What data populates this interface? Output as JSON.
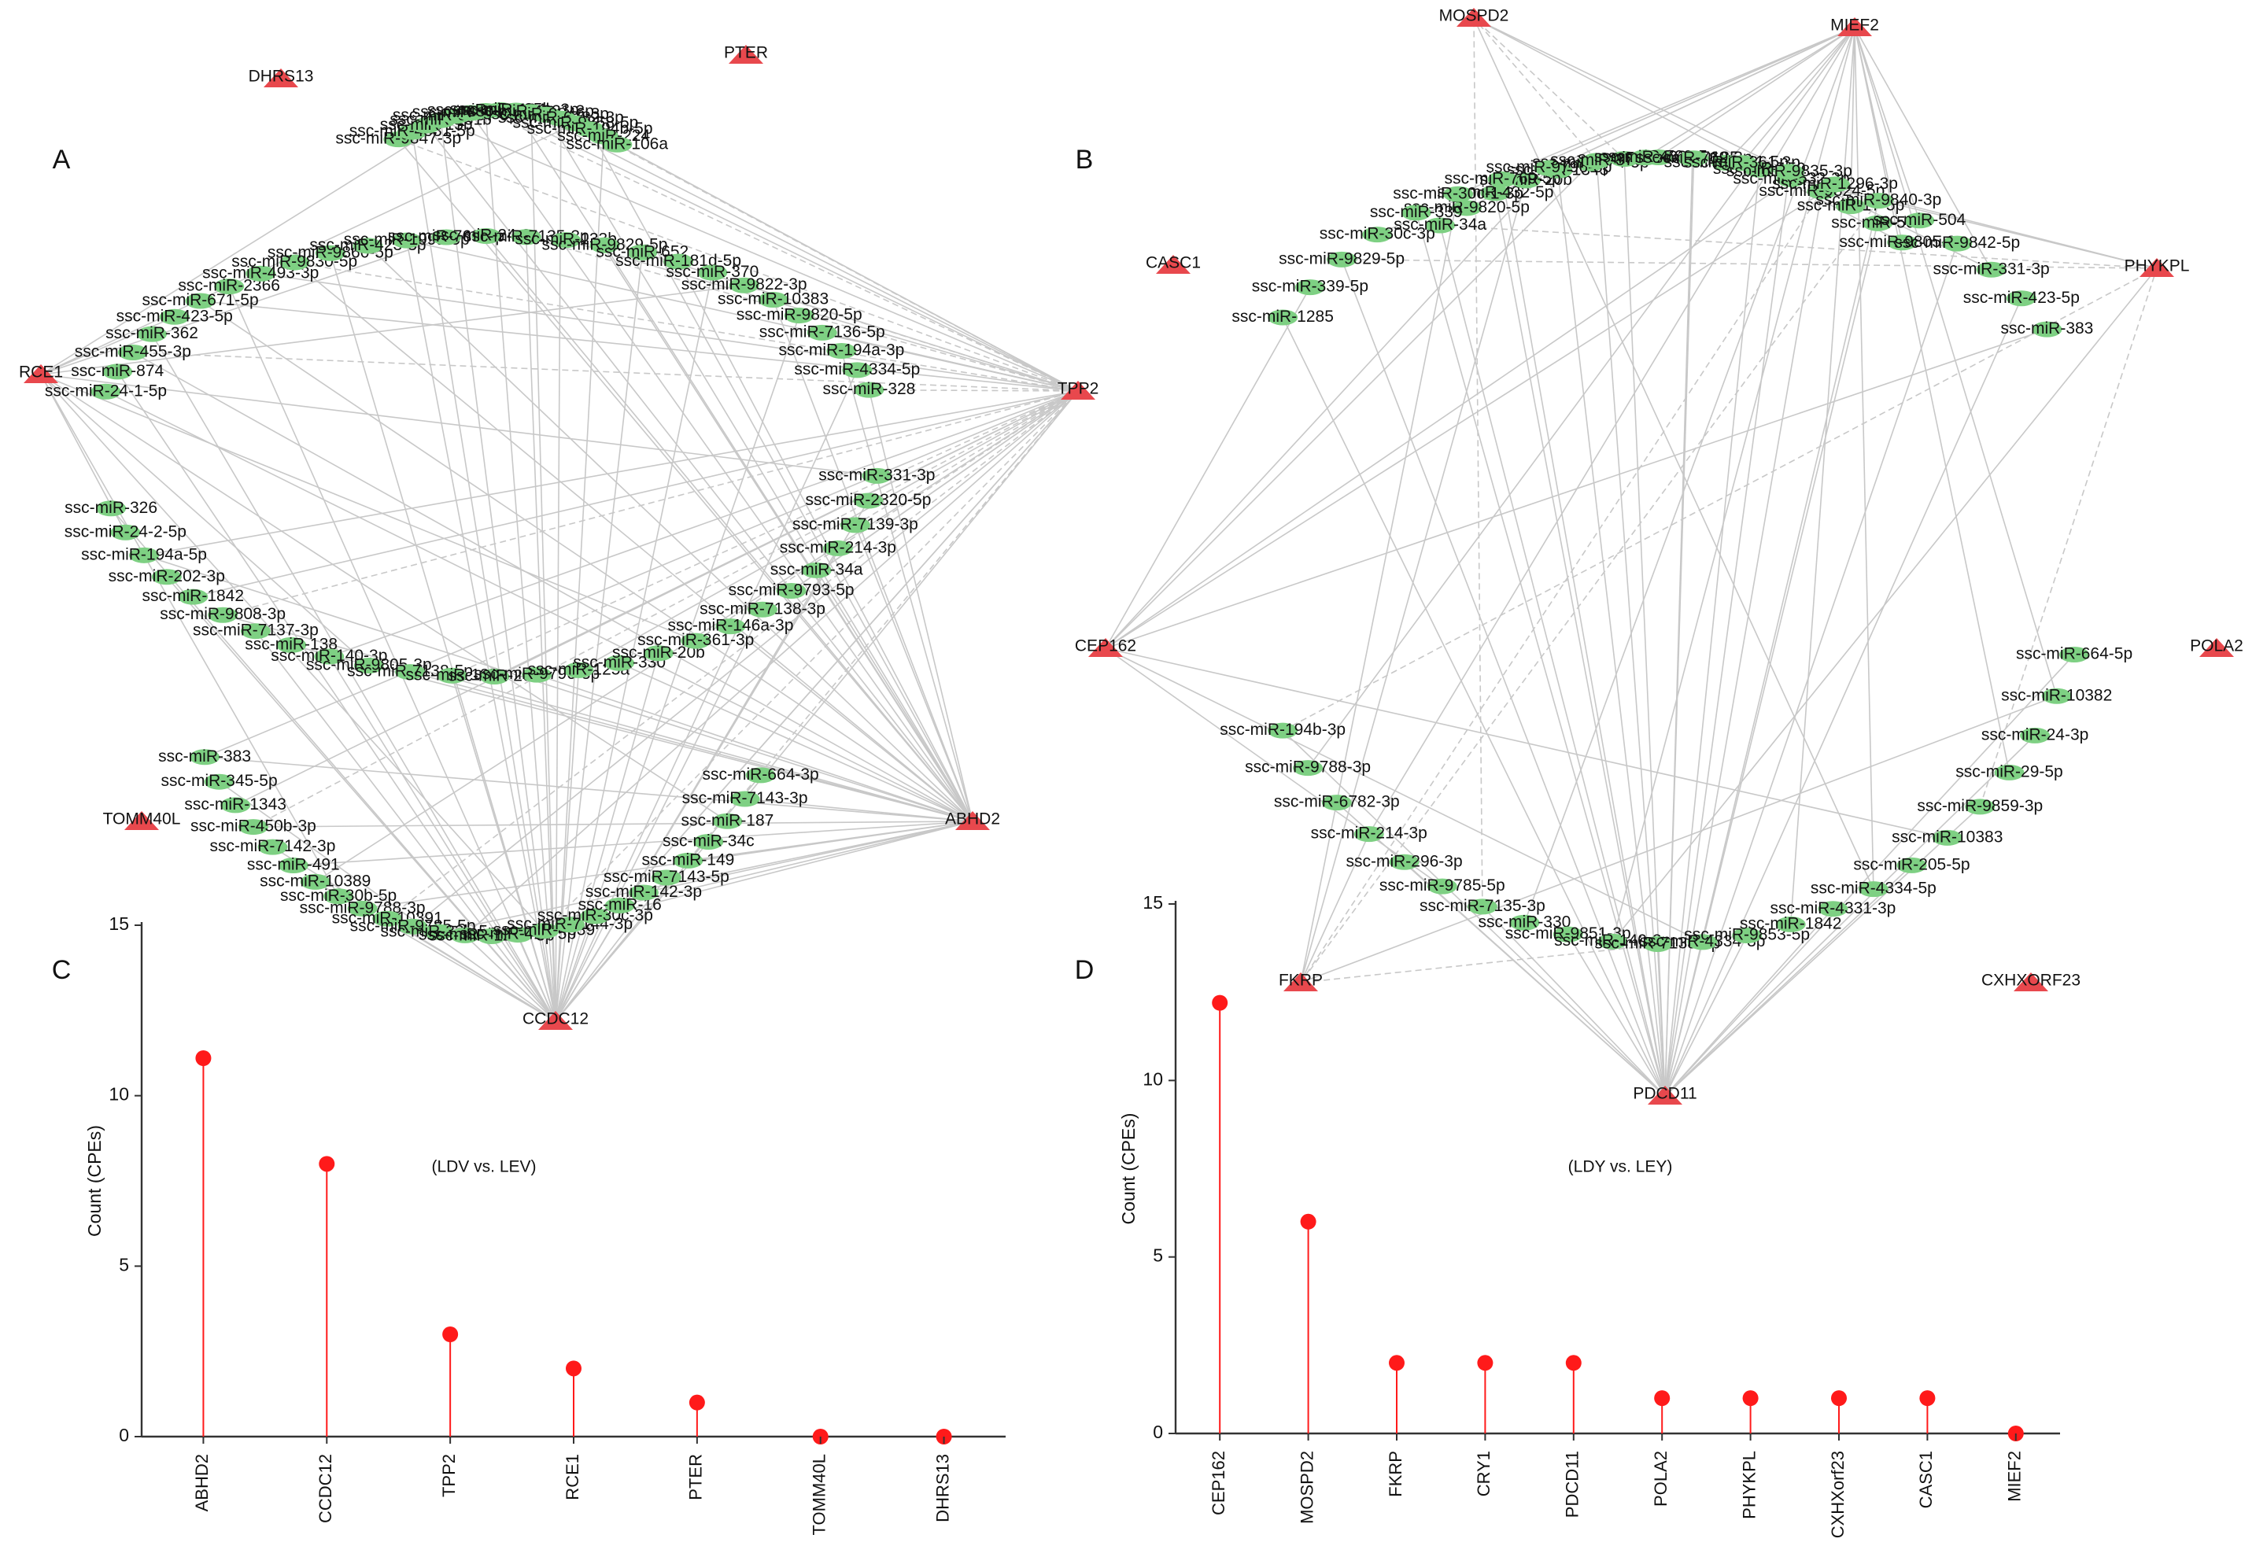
{
  "panels": [
    {
      "letter": "A",
      "type": "network",
      "mirna": [
        [
          "ssc-miR-9847-3p",
          "ssc-miR-4331-5p",
          "ssc-miR-15b",
          "ssc-miR-181b",
          "ssc-miR-9857-5p",
          "ssc-miR-145-5p",
          "ssc-miR-296-3p",
          "ssc-miR-125b",
          "ssc-miR-194b-3p",
          "ssc-miR-4331-3p",
          "ssc-miR-9846-3p",
          "ssc-miR-6782-3p",
          "ssc-miR-9858-5p",
          "ssc-miR-194b-5p",
          "ssc-miR-224",
          "ssc-miR-106a"
        ],
        [
          "ssc-miR-24-1-5p",
          "ssc-miR-874",
          "ssc-miR-455-3p",
          "ssc-miR-362",
          "ssc-miR-423-5p",
          "ssc-miR-671-5p",
          "ssc-miR-2366",
          "ssc-miR-493-3p",
          "ssc-miR-9830-5p",
          "ssc-miR-9860-5p",
          "ssc-miR-423-3p",
          "ssc-miR-199a-5p",
          "ssc-miR-769-3p",
          "ssc-miR-24-3p",
          "ssc-miR-7135-3p",
          "ssc-miR-133b",
          "ssc-miR-9829-5p",
          "ssc-miR-652",
          "ssc-miR-181d-5p",
          "ssc-miR-370",
          "ssc-miR-9822-3p",
          "ssc-miR-10383",
          "ssc-miR-9820-5p",
          "ssc-miR-7136-5p",
          "ssc-miR-194a-3p",
          "ssc-miR-4334-5p",
          "ssc-miR-328"
        ],
        [
          "ssc-miR-326",
          "ssc-miR-24-2-5p",
          "ssc-miR-194a-5p",
          "ssc-miR-202-3p",
          "ssc-miR-1842",
          "ssc-miR-9808-3p",
          "ssc-miR-7137-3p",
          "ssc-miR-138",
          "ssc-miR-140-3p",
          "ssc-miR-9805-3p",
          "ssc-miR-7138-5p",
          "ssc-miR-185",
          "ssc-miR-205",
          "ssc-miR-9796-3p",
          "ssc-miR-125a",
          "ssc-miR-330",
          "ssc-miR-20b",
          "ssc-miR-361-3p",
          "ssc-miR-146a-3p",
          "ssc-miR-7138-3p",
          "ssc-miR-9793-5p",
          "ssc-miR-34a",
          "ssc-miR-214-3p",
          "ssc-miR-7139-3p",
          "ssc-miR-2320-5p",
          "ssc-miR-331-3p"
        ],
        [
          "ssc-miR-383",
          "ssc-miR-345-5p",
          "ssc-miR-1343",
          "ssc-miR-450b-3p",
          "ssc-miR-7142-3p",
          "ssc-miR-491",
          "ssc-miR-10389",
          "ssc-miR-30b-5p",
          "ssc-miR-9788-3p",
          "ssc-miR-10391",
          "ssc-miR-9785-5p",
          "ssc-miR-33b-5p",
          "ssc-miR-497",
          "ssc-miR-1296-3p",
          "ssc-miR-424-5p",
          "ssc-miR-4339",
          "ssc-miR-7144-3p",
          "ssc-miR-30c-3p",
          "ssc-miR-16",
          "ssc-miR-142-3p",
          "ssc-miR-7143-5p",
          "ssc-miR-149",
          "ssc-miR-34c",
          "ssc-miR-187",
          "ssc-miR-7143-3p",
          "ssc-miR-664-3p"
        ]
      ],
      "genes": [
        "DHRS13",
        "PTER",
        "RCE1",
        "TPP2",
        "TOMM40L",
        "ABHD2",
        "CCDC12"
      ]
    },
    {
      "letter": "B",
      "type": "network",
      "mirna": [
        [
          "ssc-miR-34a",
          "ssc-miR-9820-5p",
          "ssc-miR-432-5p",
          "ssc-miR-20b",
          "ssc-miR-1343",
          "ssc-miR-574-5p",
          "ssc-miR-328",
          "ssc-miR-708-5p",
          "ssc-miR-185",
          "ssc-miR-9811-5p",
          "ssc-miR-150",
          "ssc-miR-532-3p",
          "ssc-miR-9824-5p",
          "ssc-miR-17-5p",
          "ssc-miR-503",
          "ssc-miR-9805-3p"
        ],
        [
          "ssc-miR-1285",
          "ssc-miR-339-5p",
          "ssc-miR-9829-5p",
          "ssc-miR-30c-3p",
          "ssc-miR-339",
          "ssc-miR-30c-1-3p",
          "ssc-miR-769-5p",
          "ssc-miR-9796-3p",
          "ssc-miR-370",
          "ssc-miR-4339",
          "ssc-miR-769-3p",
          "ssc-miR-361-3p",
          "ssc-miR-9835-3p",
          "ssc-miR-1296-3p",
          "ssc-miR-9840-3p",
          "ssc-miR-504",
          "ssc-miR-9842-5p",
          "ssc-miR-331-3p",
          "ssc-miR-423-5p",
          "ssc-miR-383"
        ],
        [
          "ssc-miR-194b-3p",
          "ssc-miR-9788-3p",
          "ssc-miR-6782-3p",
          "ssc-miR-214-3p",
          "ssc-miR-296-3p",
          "ssc-miR-9785-5p",
          "ssc-miR-7135-3p",
          "ssc-miR-330",
          "ssc-miR-9851-3p",
          "ssc-miR-140-3p",
          "ssc-miR-7138-5p",
          "ssc-miR-4334-3p",
          "ssc-miR-9853-5p",
          "ssc-miR-1842",
          "ssc-miR-4331-3p",
          "ssc-miR-4334-5p",
          "ssc-miR-205-5p",
          "ssc-miR-10383",
          "ssc-miR-9859-3p",
          "ssc-miR-29-5p",
          "ssc-miR-24-3p",
          "ssc-miR-10382",
          "ssc-miR-664-5p"
        ]
      ],
      "genes": [
        "MOSPD2",
        "MIEF2",
        "CASC1",
        "PHYKPL",
        "CEP162",
        "POLA2",
        "FKRP",
        "CXHXORF23",
        "PDCD11"
      ]
    },
    {
      "letter": "C",
      "type": "lollipop",
      "ylabel": "Count (CPEs)",
      "annotation": "(LDV vs. LEV)",
      "yticks": [
        "0",
        "5",
        "10",
        "15"
      ]
    },
    {
      "letter": "D",
      "type": "lollipop",
      "ylabel": "Count (CPEs)",
      "annotation": "(LDY vs. LEY)",
      "yticks": [
        "0",
        "5",
        "10",
        "15"
      ]
    }
  ],
  "colors": {
    "gene_node": "#e8484d",
    "mirna_node": "#7ed083",
    "edge": "#c8c8c8",
    "lollipop": "#ff1a1a",
    "axis": "#333333",
    "text": "#111111"
  },
  "chart_data": [
    {
      "type": "lollipop",
      "panel": "C",
      "categories": [
        "ABHD2",
        "CCDC12",
        "TPP2",
        "RCE1",
        "PTER",
        "TOMM40L",
        "DHRS13"
      ],
      "values": [
        11.1,
        8.0,
        3.0,
        2.0,
        1.0,
        0.0,
        0.0
      ],
      "ylabel": "Count (CPEs)",
      "ylim": [
        0,
        15
      ]
    },
    {
      "type": "lollipop",
      "panel": "D",
      "categories": [
        "CEP162",
        "MOSPD2",
        "FKRP",
        "CRY1",
        "PDCD11",
        "POLA2",
        "PHYKPL",
        "CXHXorf23",
        "CASC1",
        "MIEF2"
      ],
      "values": [
        12.2,
        6.0,
        2.0,
        2.0,
        2.0,
        1.0,
        1.0,
        1.0,
        1.0,
        0.0
      ],
      "ylabel": "Count (CPEs)",
      "ylim": [
        0,
        15
      ]
    }
  ]
}
